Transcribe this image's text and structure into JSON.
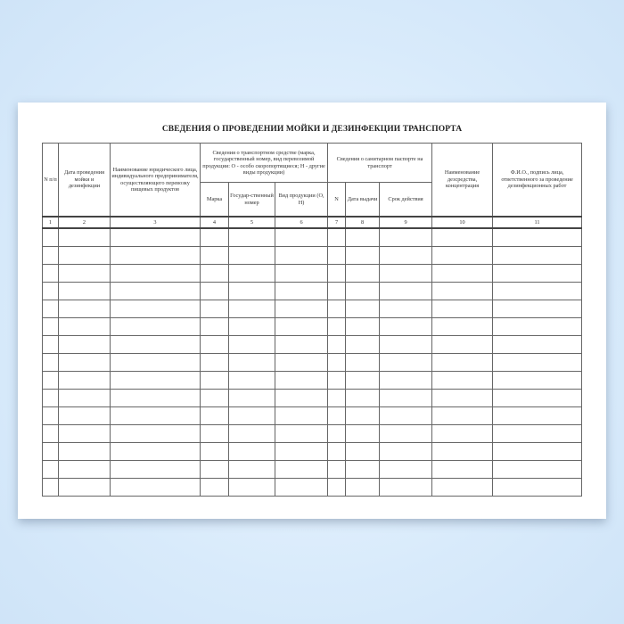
{
  "title": "СВЕДЕНИЯ О ПРОВЕДЕНИИ МОЙКИ И ДЕЗИНФЕКЦИИ ТРАНСПОРТА",
  "headers": {
    "col1": "N п/п",
    "col2": "Дата проведения мойки и дезинфекции",
    "col3": "Наименование юридического лица, индивидуального предпринимателя, осуществляющего перевозку пищевых продуктов",
    "group_vehicle": "Сведения о транспортном средстве (марка, государственный номер, вид перевозимой продукции: О - особо скоропортящиеся; Н - другие виды продукции)",
    "col4": "Марка",
    "col5": "Государ-ственный номер",
    "col6": "Вид продукции (О, Н)",
    "group_passport": "Сведения о санитарном паспорте на транспорт",
    "col7": "N",
    "col8": "Дата выдачи",
    "col9": "Срок действия",
    "col10": "Наименование дезсредства, концентрация",
    "col11": "Ф.И.О., подпись лица, ответственного за проведение дезинфекционных работ"
  },
  "column_numbers": [
    "1",
    "2",
    "3",
    "4",
    "5",
    "6",
    "7",
    "8",
    "9",
    "10",
    "11"
  ],
  "empty_rows": 15
}
